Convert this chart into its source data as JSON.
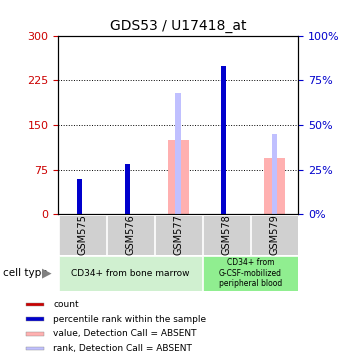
{
  "title": "GDS53 / U17418_at",
  "samples": [
    "GSM575",
    "GSM576",
    "GSM577",
    "GSM578",
    "GSM579"
  ],
  "count_values": [
    50,
    65,
    0,
    230,
    0
  ],
  "percentile_values": [
    20,
    28,
    0,
    83,
    0
  ],
  "absent_value_values": [
    0,
    0,
    125,
    0,
    95
  ],
  "absent_rank_values": [
    0,
    0,
    68,
    0,
    45
  ],
  "ylim_left": [
    0,
    300
  ],
  "ylim_right": [
    0,
    100
  ],
  "yticks_left": [
    0,
    75,
    150,
    225,
    300
  ],
  "yticks_right": [
    0,
    25,
    50,
    75,
    100
  ],
  "colors": {
    "count": "#cc0000",
    "percentile": "#0000cc",
    "absent_value": "#ffb0b0",
    "absent_rank": "#c0c0ff",
    "left_axis": "#cc0000",
    "right_axis": "#0000cc"
  },
  "grid_yticks": [
    75,
    150,
    225
  ],
  "cell_type_group1_label": "CD34+ from bone marrow",
  "cell_type_group2_label": "CD34+ from\nG-CSF-mobilized\nperipheral blood",
  "cell_type_group1_color": "#d0f0d0",
  "cell_type_group2_color": "#90ee90",
  "cell_type_group1_samples": [
    0,
    1,
    2
  ],
  "cell_type_group2_samples": [
    3,
    4
  ]
}
